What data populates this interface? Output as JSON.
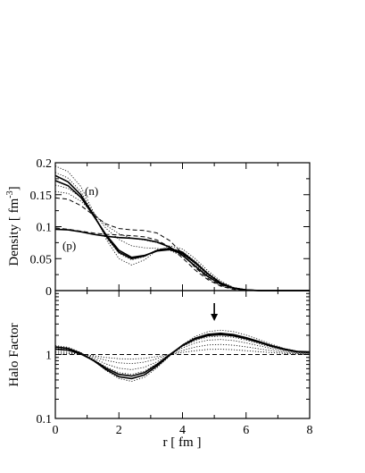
{
  "chart_data": [
    {
      "type": "line",
      "ylabel": "Density  [ fm",
      "ylabel_sup": "-3",
      "ylabel_close": "]",
      "ylim": [
        0,
        0.2
      ],
      "xlim": [
        0,
        8
      ],
      "yticks": [
        "0",
        "0.05",
        "0.1",
        "0.15",
        "0.2"
      ],
      "annotations": [
        "(n)",
        "(p)"
      ],
      "series": [
        {
          "style": "solid",
          "x": [
            0,
            0.4,
            0.8,
            1.2,
            1.6,
            2.0,
            2.4,
            2.8,
            3.2,
            3.6,
            4.0,
            4.4,
            4.8,
            5.2,
            5.6,
            6.0,
            6.4,
            7.0,
            8.0
          ],
          "y": [
            0.18,
            0.17,
            0.15,
            0.118,
            0.085,
            0.06,
            0.05,
            0.054,
            0.063,
            0.066,
            0.06,
            0.044,
            0.026,
            0.012,
            0.004,
            0.001,
            0,
            0,
            0
          ]
        },
        {
          "style": "solid",
          "x": [
            0,
            0.4,
            0.8,
            1.2,
            1.6,
            2.0,
            2.4,
            2.8,
            3.2,
            3.6,
            4.0,
            4.4,
            4.8,
            5.2,
            5.6,
            6.0,
            6.4,
            7.0,
            8.0
          ],
          "y": [
            0.172,
            0.164,
            0.146,
            0.117,
            0.087,
            0.063,
            0.052,
            0.055,
            0.062,
            0.064,
            0.058,
            0.043,
            0.026,
            0.012,
            0.004,
            0.001,
            0,
            0,
            0
          ]
        },
        {
          "style": "solid",
          "x": [
            0,
            0.4,
            0.8,
            1.2,
            1.6,
            2.0,
            2.4,
            2.8,
            3.2,
            3.6,
            4.0,
            4.4,
            4.8,
            5.2,
            5.6,
            6.0,
            6.5,
            7.0,
            8.0
          ],
          "y": [
            0.096,
            0.095,
            0.092,
            0.088,
            0.085,
            0.083,
            0.082,
            0.08,
            0.076,
            0.068,
            0.055,
            0.038,
            0.022,
            0.01,
            0.004,
            0.001,
            0,
            0,
            0
          ]
        },
        {
          "style": "dashed",
          "x": [
            0,
            0.4,
            0.8,
            1.2,
            1.6,
            2.0,
            2.4,
            2.8,
            3.2,
            3.6,
            4.0,
            4.4,
            4.8,
            5.2,
            5.6,
            6.0,
            6.5,
            7.0,
            8.0
          ],
          "y": [
            0.145,
            0.143,
            0.133,
            0.118,
            0.104,
            0.097,
            0.095,
            0.094,
            0.09,
            0.078,
            0.058,
            0.036,
            0.019,
            0.008,
            0.003,
            0.001,
            0,
            0,
            0
          ]
        },
        {
          "style": "dashed",
          "x": [
            0,
            0.4,
            0.8,
            1.2,
            1.6,
            2.0,
            2.4,
            2.8,
            3.2,
            3.6,
            4.0,
            4.4,
            4.8,
            5.2,
            5.6,
            6.0,
            6.5,
            7.0,
            8.0
          ],
          "y": [
            0.098,
            0.096,
            0.093,
            0.09,
            0.088,
            0.087,
            0.086,
            0.084,
            0.079,
            0.068,
            0.051,
            0.032,
            0.017,
            0.007,
            0.002,
            0,
            0,
            0,
            0
          ]
        },
        {
          "style": "dotted",
          "x": [
            0,
            0.4,
            0.8,
            1.2,
            1.6,
            2.0,
            2.4,
            2.8,
            3.2,
            3.6,
            4.0,
            4.4,
            4.8,
            5.2,
            5.6,
            6.0,
            6.5,
            7.0,
            8.0
          ],
          "y": [
            0.195,
            0.186,
            0.163,
            0.123,
            0.08,
            0.05,
            0.04,
            0.048,
            0.063,
            0.07,
            0.065,
            0.05,
            0.031,
            0.015,
            0.005,
            0.001,
            0,
            0,
            0
          ]
        },
        {
          "style": "dotted",
          "x": [
            0,
            0.4,
            0.8,
            1.2,
            1.6,
            2.0,
            2.4,
            2.8,
            3.2,
            3.6,
            4.0,
            4.4,
            4.8,
            5.2,
            5.6,
            6.0,
            6.5,
            7.0,
            8.0
          ],
          "y": [
            0.185,
            0.176,
            0.155,
            0.12,
            0.083,
            0.058,
            0.048,
            0.053,
            0.064,
            0.067,
            0.061,
            0.046,
            0.028,
            0.013,
            0.004,
            0.001,
            0,
            0,
            0
          ]
        },
        {
          "style": "dotted",
          "x": [
            0,
            0.4,
            0.8,
            1.2,
            1.6,
            2.0,
            2.4,
            2.8,
            3.2,
            3.6,
            4.0,
            4.4,
            4.8,
            5.2,
            5.6,
            6.0,
            6.5,
            7.0,
            8.0
          ],
          "y": [
            0.165,
            0.16,
            0.146,
            0.122,
            0.097,
            0.08,
            0.07,
            0.067,
            0.066,
            0.063,
            0.054,
            0.04,
            0.024,
            0.011,
            0.004,
            0.001,
            0,
            0,
            0
          ]
        },
        {
          "style": "dotted",
          "x": [
            0,
            0.4,
            0.8,
            1.2,
            1.6,
            2.0,
            2.4,
            2.8,
            3.2,
            3.6,
            4.0,
            4.4,
            4.8,
            5.2,
            5.6,
            6.0,
            6.5,
            7.0,
            8.0
          ],
          "y": [
            0.155,
            0.152,
            0.14,
            0.121,
            0.102,
            0.089,
            0.082,
            0.079,
            0.075,
            0.068,
            0.056,
            0.039,
            0.022,
            0.01,
            0.003,
            0.001,
            0,
            0,
            0
          ]
        }
      ]
    },
    {
      "type": "line",
      "ylabel": "Halo Factor",
      "xlabel": "r  [ fm ]",
      "yscale": "log",
      "ylim": [
        0.1,
        10
      ],
      "xlim": [
        0,
        8
      ],
      "yticks": [
        "0.1",
        "1"
      ],
      "xticks": [
        "0",
        "2",
        "4",
        "6",
        "8"
      ],
      "marker": {
        "x": 5.0,
        "direction": "down"
      },
      "series": [
        {
          "style": "solid",
          "x": [
            0,
            0.4,
            0.8,
            1.2,
            1.6,
            2.0,
            2.4,
            2.8,
            3.2,
            3.6,
            4.0,
            4.4,
            4.8,
            5.2,
            5.6,
            6.0,
            6.4,
            6.8,
            7.2,
            7.6,
            8.0
          ],
          "y": [
            1.32,
            1.25,
            1.05,
            0.8,
            0.58,
            0.45,
            0.42,
            0.48,
            0.66,
            0.98,
            1.4,
            1.8,
            2.07,
            2.15,
            2.05,
            1.84,
            1.6,
            1.38,
            1.22,
            1.12,
            1.1
          ]
        },
        {
          "style": "solid",
          "x": [
            0,
            0.4,
            0.8,
            1.2,
            1.6,
            2.0,
            2.4,
            2.8,
            3.2,
            3.6,
            4.0,
            4.4,
            4.8,
            5.2,
            5.6,
            6.0,
            6.4,
            6.8,
            7.2,
            7.6,
            8.0
          ],
          "y": [
            1.22,
            1.17,
            1.02,
            0.81,
            0.61,
            0.49,
            0.46,
            0.52,
            0.7,
            1.0,
            1.38,
            1.74,
            1.98,
            2.05,
            1.96,
            1.77,
            1.55,
            1.35,
            1.2,
            1.1,
            1.08
          ]
        },
        {
          "style": "dashed",
          "x": [
            0,
            8
          ],
          "y": [
            1.0,
            1.0
          ]
        },
        {
          "style": "dotted",
          "x": [
            0,
            0.4,
            0.8,
            1.2,
            1.6,
            2.0,
            2.4,
            2.8,
            3.2,
            3.6,
            4.0,
            4.4,
            4.8,
            5.2,
            5.6,
            6.0,
            6.4,
            6.8,
            7.2,
            7.6,
            8.0
          ],
          "y": [
            1.38,
            1.3,
            1.08,
            0.8,
            0.56,
            0.42,
            0.38,
            0.44,
            0.62,
            0.95,
            1.42,
            1.92,
            2.28,
            2.4,
            2.28,
            2.02,
            1.72,
            1.45,
            1.25,
            1.13,
            1.1
          ]
        },
        {
          "style": "dotted",
          "x": [
            0,
            0.4,
            0.8,
            1.2,
            1.6,
            2.0,
            2.4,
            2.8,
            3.2,
            3.6,
            4.0,
            4.4,
            4.8,
            5.2,
            5.6,
            6.0,
            6.4,
            6.8,
            7.2,
            7.6,
            8.0
          ],
          "y": [
            1.28,
            1.22,
            1.05,
            0.83,
            0.64,
            0.52,
            0.49,
            0.55,
            0.72,
            1.0,
            1.34,
            1.66,
            1.88,
            1.94,
            1.86,
            1.68,
            1.48,
            1.3,
            1.17,
            1.08,
            1.06
          ]
        },
        {
          "style": "dotted",
          "x": [
            0,
            0.4,
            0.8,
            1.2,
            1.6,
            2.0,
            2.4,
            2.8,
            3.2,
            3.6,
            4.0,
            4.4,
            4.8,
            5.2,
            5.6,
            6.0,
            6.4,
            6.8,
            7.2,
            7.6,
            8.0
          ],
          "y": [
            1.18,
            1.15,
            1.04,
            0.87,
            0.71,
            0.61,
            0.58,
            0.63,
            0.77,
            1.0,
            1.27,
            1.52,
            1.68,
            1.72,
            1.65,
            1.52,
            1.37,
            1.24,
            1.13,
            1.06,
            1.04
          ]
        },
        {
          "style": "dotted",
          "x": [
            0,
            0.4,
            0.8,
            1.2,
            1.6,
            2.0,
            2.4,
            2.8,
            3.2,
            3.6,
            4.0,
            4.4,
            4.8,
            5.2,
            5.6,
            6.0,
            6.4,
            6.8,
            7.2,
            7.6,
            8.0
          ],
          "y": [
            1.1,
            1.08,
            1.02,
            0.92,
            0.81,
            0.74,
            0.72,
            0.76,
            0.86,
            1.0,
            1.16,
            1.31,
            1.41,
            1.44,
            1.4,
            1.32,
            1.23,
            1.15,
            1.08,
            1.04,
            1.02
          ]
        },
        {
          "style": "dotted",
          "x": [
            0,
            0.4,
            0.8,
            1.2,
            1.6,
            2.0,
            2.4,
            2.8,
            3.2,
            3.6,
            4.0,
            4.4,
            4.8,
            5.2,
            5.6,
            6.0,
            6.4,
            6.8,
            7.2,
            7.6,
            8.0
          ],
          "y": [
            1.05,
            1.04,
            1.01,
            0.96,
            0.9,
            0.86,
            0.85,
            0.87,
            0.93,
            1.0,
            1.08,
            1.15,
            1.2,
            1.21,
            1.19,
            1.15,
            1.11,
            1.07,
            1.04,
            1.02,
            1.01
          ]
        }
      ]
    }
  ]
}
